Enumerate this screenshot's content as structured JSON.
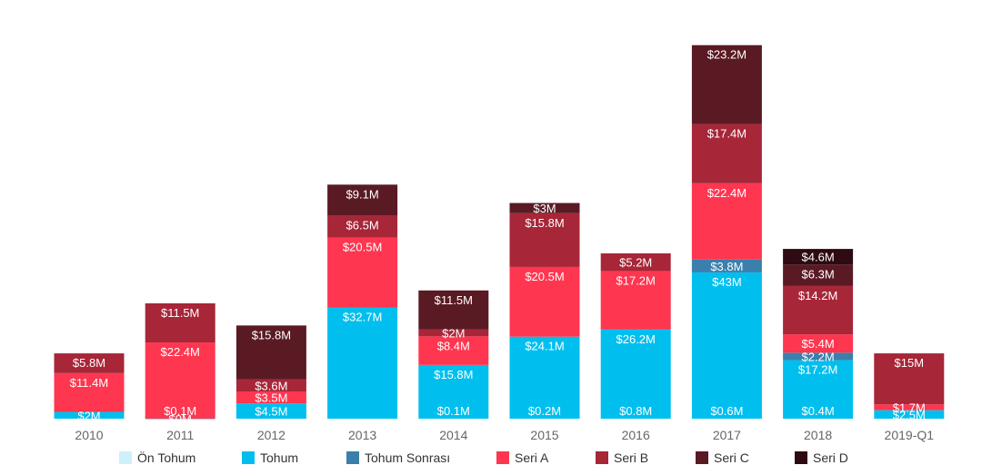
{
  "chart_data": {
    "type": "bar",
    "stacked": true,
    "categories": [
      "2010",
      "2011",
      "2012",
      "2013",
      "2014",
      "2015",
      "2016",
      "2017",
      "2018",
      "2019-Q1"
    ],
    "series": [
      {
        "name": "Ön Tohum",
        "color": "#cdf1fb",
        "values": [
          0,
          0,
          0,
          0,
          0,
          0,
          0,
          0,
          0,
          0
        ],
        "labels": [
          "",
          "",
          "",
          "",
          "",
          "",
          "",
          "",
          "",
          ""
        ]
      },
      {
        "name": "Tohum",
        "color": "#00bfee",
        "values": [
          2,
          0.01,
          4.5,
          32.7,
          15.8,
          24.1,
          26.2,
          43,
          17.2,
          2.5
        ],
        "labels": [
          "$2M",
          "$0M",
          "$4.5M",
          "$32.7M",
          "$15.8M",
          "$24.1M",
          "$26.2M",
          "$43M",
          "$17.2M",
          "$2.5M"
        ]
      },
      {
        "name": "Tohum Sonrası",
        "color": "#3b7fac",
        "values": [
          0,
          0,
          0,
          0,
          0,
          0,
          0,
          3.8,
          2.2,
          0
        ],
        "labels": [
          "",
          "",
          "",
          "",
          "",
          "",
          "",
          "$3.8M",
          "$2.2M",
          ""
        ]
      },
      {
        "name": "Seri A",
        "color": "#ff3650",
        "values": [
          11.4,
          22.4,
          3.5,
          20.5,
          8.4,
          20.5,
          17.2,
          22.4,
          5.4,
          1.7
        ],
        "labels": [
          "$11.4M",
          "$22.4M",
          "$3.5M",
          "$20.5M",
          "$8.4M",
          "$20.5M",
          "$17.2M",
          "$22.4M",
          "$5.4M",
          "$1.7M"
        ]
      },
      {
        "name": "Seri B",
        "color": "#a72638",
        "values": [
          5.8,
          11.5,
          3.6,
          6.5,
          2,
          15.8,
          5.2,
          17.4,
          14.2,
          15
        ],
        "labels": [
          "$5.8M",
          "$11.5M",
          "$3.6M",
          "$6.5M",
          "$2M",
          "$15.8M",
          "$5.2M",
          "$17.4M",
          "$14.2M",
          "$15M"
        ]
      },
      {
        "name": "Seri C",
        "color": "#5a1a24",
        "values": [
          0,
          0,
          15.8,
          9.1,
          11.5,
          3,
          0,
          23.2,
          6.3,
          0
        ],
        "labels": [
          "",
          "",
          "$15.8M",
          "$9.1M",
          "$11.5M",
          "$3M",
          "",
          "$23.2M",
          "$6.3M",
          ""
        ]
      },
      {
        "name": "Seri D",
        "color": "#2e0a12",
        "values": [
          0,
          0,
          0,
          0,
          0,
          0,
          0,
          0,
          4.6,
          0
        ],
        "labels": [
          "",
          "",
          "",
          "",
          "",
          "",
          "",
          "",
          "$4.6M",
          ""
        ]
      }
    ],
    "extra_labels": [
      {
        "category_index": 1,
        "series_index": 1,
        "text": "$0.1M"
      },
      {
        "category_index": 4,
        "series_index": 1,
        "text": "$0.1M"
      },
      {
        "category_index": 5,
        "series_index": 1,
        "text": "$0.2M"
      },
      {
        "category_index": 6,
        "series_index": 1,
        "text": "$0.8M"
      },
      {
        "category_index": 7,
        "series_index": 1,
        "text": "$0.6M"
      },
      {
        "category_index": 8,
        "series_index": 1,
        "text": "$0.4M"
      }
    ],
    "ylim": [
      0,
      118
    ],
    "grid": false,
    "legend_position": "bottom"
  }
}
